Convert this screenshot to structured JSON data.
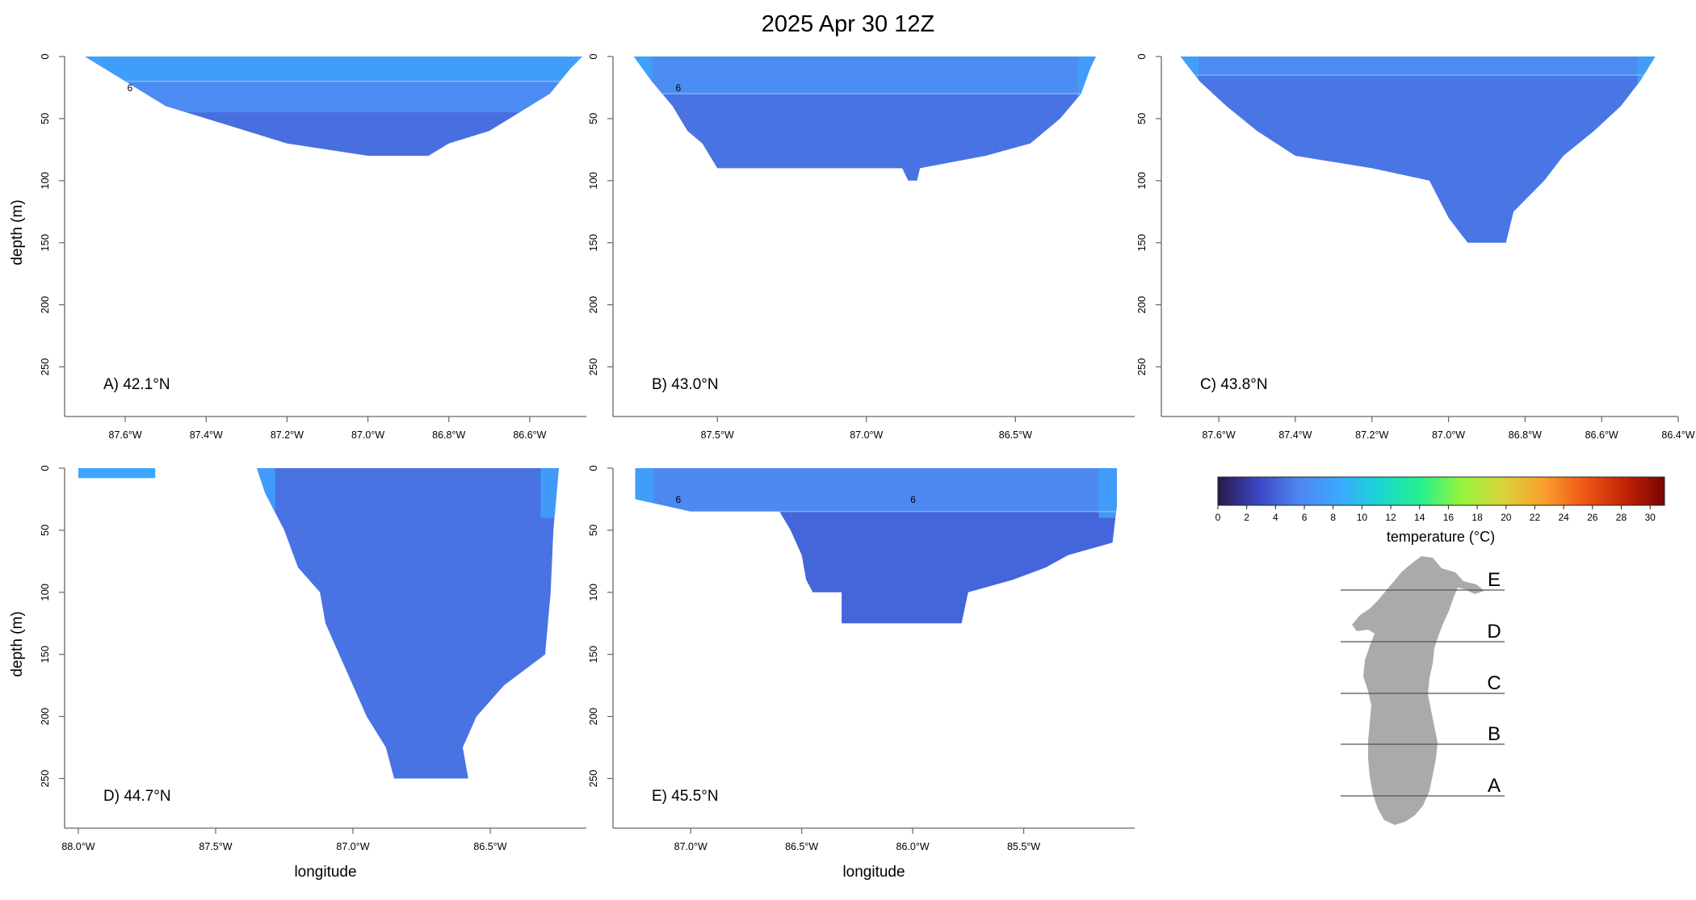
{
  "figure": {
    "title": "2025 Apr 30 12Z",
    "ylabel": "depth (m)",
    "xlabel": "longitude"
  },
  "colors": {
    "lake_shape": "#aaaaaa",
    "contour": "#a9c8ee"
  },
  "chart_data": [
    {
      "type": "heatmap",
      "panel": "A",
      "label": "A) 42.1°N",
      "ylim": [
        0,
        290
      ],
      "yticks": [
        "0",
        "50",
        "100",
        "150",
        "200",
        "250"
      ],
      "xlim": [
        -87.75,
        -86.46
      ],
      "xticks": [
        {
          "x": -87.6,
          "label": "87.6°W"
        },
        {
          "x": -87.4,
          "label": "87.4°W"
        },
        {
          "x": -87.2,
          "label": "87.2°W"
        },
        {
          "x": -87.0,
          "label": "87.0°W"
        },
        {
          "x": -86.8,
          "label": "86.8°W"
        },
        {
          "x": -86.6,
          "label": "86.6°W"
        }
      ],
      "bottom_profile": [
        [
          -87.7,
          0
        ],
        [
          -87.65,
          10
        ],
        [
          -87.6,
          20
        ],
        [
          -87.55,
          30
        ],
        [
          -87.5,
          40
        ],
        [
          -87.4,
          50
        ],
        [
          -87.3,
          60
        ],
        [
          -87.2,
          70
        ],
        [
          -87.0,
          80
        ],
        [
          -86.85,
          80
        ],
        [
          -86.8,
          70
        ],
        [
          -86.7,
          60
        ],
        [
          -86.65,
          50
        ],
        [
          -86.6,
          40
        ],
        [
          -86.55,
          30
        ],
        [
          -86.5,
          10
        ],
        [
          -86.47,
          0
        ]
      ],
      "temperature_layers": [
        {
          "depth": [
            0,
            20
          ],
          "temp": 7.5
        },
        {
          "depth": [
            20,
            45
          ],
          "temp": 6.0
        },
        {
          "depth": [
            45,
            80
          ],
          "temp": 4.6
        }
      ],
      "contour_labels": [
        "6"
      ]
    },
    {
      "type": "heatmap",
      "panel": "B",
      "label": "B) 43.0°N",
      "ylim": [
        0,
        290
      ],
      "yticks": [
        "0",
        "50",
        "100",
        "150",
        "200",
        "250"
      ],
      "xlim": [
        -87.85,
        -86.1
      ],
      "xticks": [
        {
          "x": -87.5,
          "label": "87.5°W"
        },
        {
          "x": -87.0,
          "label": "87.0°W"
        },
        {
          "x": -86.5,
          "label": "86.5°W"
        }
      ],
      "bottom_profile": [
        [
          -87.78,
          0
        ],
        [
          -87.72,
          20
        ],
        [
          -87.65,
          40
        ],
        [
          -87.6,
          60
        ],
        [
          -87.55,
          70
        ],
        [
          -87.5,
          90
        ],
        [
          -86.88,
          90
        ],
        [
          -86.86,
          100
        ],
        [
          -86.83,
          100
        ],
        [
          -86.82,
          90
        ],
        [
          -86.6,
          80
        ],
        [
          -86.45,
          70
        ],
        [
          -86.35,
          50
        ],
        [
          -86.28,
          30
        ],
        [
          -86.25,
          10
        ],
        [
          -86.23,
          0
        ]
      ],
      "temperature_layers": [
        {
          "depth": [
            0,
            30
          ],
          "temp": 6.2
        },
        {
          "depth": [
            30,
            100
          ],
          "temp": 4.8
        }
      ],
      "contour_labels": [
        "6"
      ]
    },
    {
      "type": "heatmap",
      "panel": "C",
      "label": "C) 43.8°N",
      "ylim": [
        0,
        290
      ],
      "yticks": [
        "0",
        "50",
        "100",
        "150",
        "200",
        "250"
      ],
      "xlim": [
        -87.75,
        -86.4
      ],
      "xticks": [
        {
          "x": -87.6,
          "label": "87.6°W"
        },
        {
          "x": -87.4,
          "label": "87.4°W"
        },
        {
          "x": -87.2,
          "label": "87.2°W"
        },
        {
          "x": -87.0,
          "label": "87.0°W"
        },
        {
          "x": -86.8,
          "label": "86.8°W"
        },
        {
          "x": -86.6,
          "label": "86.6°W"
        },
        {
          "x": -86.4,
          "label": "86.4°W"
        }
      ],
      "bottom_profile": [
        [
          -87.7,
          0
        ],
        [
          -87.65,
          20
        ],
        [
          -87.58,
          40
        ],
        [
          -87.5,
          60
        ],
        [
          -87.4,
          80
        ],
        [
          -87.2,
          90
        ],
        [
          -87.05,
          100
        ],
        [
          -87.0,
          130
        ],
        [
          -86.95,
          150
        ],
        [
          -86.85,
          150
        ],
        [
          -86.83,
          125
        ],
        [
          -86.75,
          100
        ],
        [
          -86.7,
          80
        ],
        [
          -86.62,
          60
        ],
        [
          -86.55,
          40
        ],
        [
          -86.5,
          20
        ],
        [
          -86.46,
          0
        ]
      ],
      "temperature_layers": [
        {
          "depth": [
            0,
            15
          ],
          "temp": 6.0
        },
        {
          "depth": [
            15,
            150
          ],
          "temp": 4.9
        }
      ],
      "contour_labels": []
    },
    {
      "type": "heatmap",
      "panel": "D",
      "label": "D) 44.7°N",
      "ylim": [
        0,
        290
      ],
      "yticks": [
        "0",
        "50",
        "100",
        "150",
        "200",
        "250"
      ],
      "xlim": [
        -88.05,
        -86.15
      ],
      "xticks": [
        {
          "x": -88.0,
          "label": "88.0°W"
        },
        {
          "x": -87.5,
          "label": "87.5°W"
        },
        {
          "x": -87.0,
          "label": "87.0°W"
        },
        {
          "x": -86.5,
          "label": "86.5°W"
        }
      ],
      "islands": [
        [
          -88.0,
          -87.72,
          0,
          8
        ]
      ],
      "bottom_profile": [
        [
          -87.35,
          0
        ],
        [
          -87.32,
          20
        ],
        [
          -87.25,
          50
        ],
        [
          -87.2,
          80
        ],
        [
          -87.12,
          100
        ],
        [
          -87.1,
          125
        ],
        [
          -87.05,
          150
        ],
        [
          -87.0,
          175
        ],
        [
          -86.95,
          200
        ],
        [
          -86.88,
          225
        ],
        [
          -86.85,
          250
        ],
        [
          -86.58,
          250
        ],
        [
          -86.6,
          225
        ],
        [
          -86.55,
          200
        ],
        [
          -86.45,
          175
        ],
        [
          -86.3,
          150
        ],
        [
          -86.28,
          100
        ],
        [
          -86.27,
          50
        ],
        [
          -86.25,
          0
        ]
      ],
      "temperature_layers": [
        {
          "depth": [
            0,
            250
          ],
          "temp": 4.8
        }
      ],
      "contour_labels": []
    },
    {
      "type": "heatmap",
      "panel": "E",
      "label": "E) 45.5°N",
      "ylim": [
        0,
        290
      ],
      "yticks": [
        "0",
        "50",
        "100",
        "150",
        "200",
        "250"
      ],
      "xlim": [
        -87.35,
        -85.0
      ],
      "xticks": [
        {
          "x": -87.0,
          "label": "87.0°W"
        },
        {
          "x": -86.5,
          "label": "86.5°W"
        },
        {
          "x": -86.0,
          "label": "86.0°W"
        },
        {
          "x": -85.5,
          "label": "85.5°W"
        }
      ],
      "bottom_profile": [
        [
          -87.25,
          0
        ],
        [
          -87.25,
          25
        ],
        [
          -87.0,
          35
        ],
        [
          -86.6,
          35
        ],
        [
          -86.55,
          50
        ],
        [
          -86.5,
          70
        ],
        [
          -86.48,
          90
        ],
        [
          -86.45,
          100
        ],
        [
          -86.32,
          100
        ],
        [
          -86.32,
          125
        ],
        [
          -85.78,
          125
        ],
        [
          -85.75,
          100
        ],
        [
          -85.55,
          90
        ],
        [
          -85.4,
          80
        ],
        [
          -85.3,
          70
        ],
        [
          -85.1,
          60
        ],
        [
          -85.08,
          30
        ],
        [
          -85.08,
          0
        ]
      ],
      "temperature_layers": [
        {
          "depth": [
            0,
            35
          ],
          "temp": 5.8
        },
        {
          "depth": [
            35,
            125
          ],
          "temp": 4.2
        }
      ],
      "contour_labels": [
        "6",
        "6"
      ]
    }
  ],
  "colorbar": {
    "label": "temperature (°C)",
    "range": [
      0,
      31
    ],
    "ticks": [
      "0",
      "2",
      "4",
      "6",
      "8",
      "10",
      "12",
      "14",
      "16",
      "18",
      "20",
      "22",
      "24",
      "26",
      "28",
      "30"
    ],
    "stops": [
      "#2a1a4a",
      "#3b47c4",
      "#4f86f0",
      "#3aa9ff",
      "#19d7d0",
      "#27f08e",
      "#94f43c",
      "#d8d43a",
      "#f9a12e",
      "#ee5a16",
      "#c42405",
      "#7a0403"
    ]
  },
  "map": {
    "transects": [
      {
        "label": "E"
      },
      {
        "label": "D"
      },
      {
        "label": "C"
      },
      {
        "label": "B"
      },
      {
        "label": "A"
      }
    ]
  }
}
